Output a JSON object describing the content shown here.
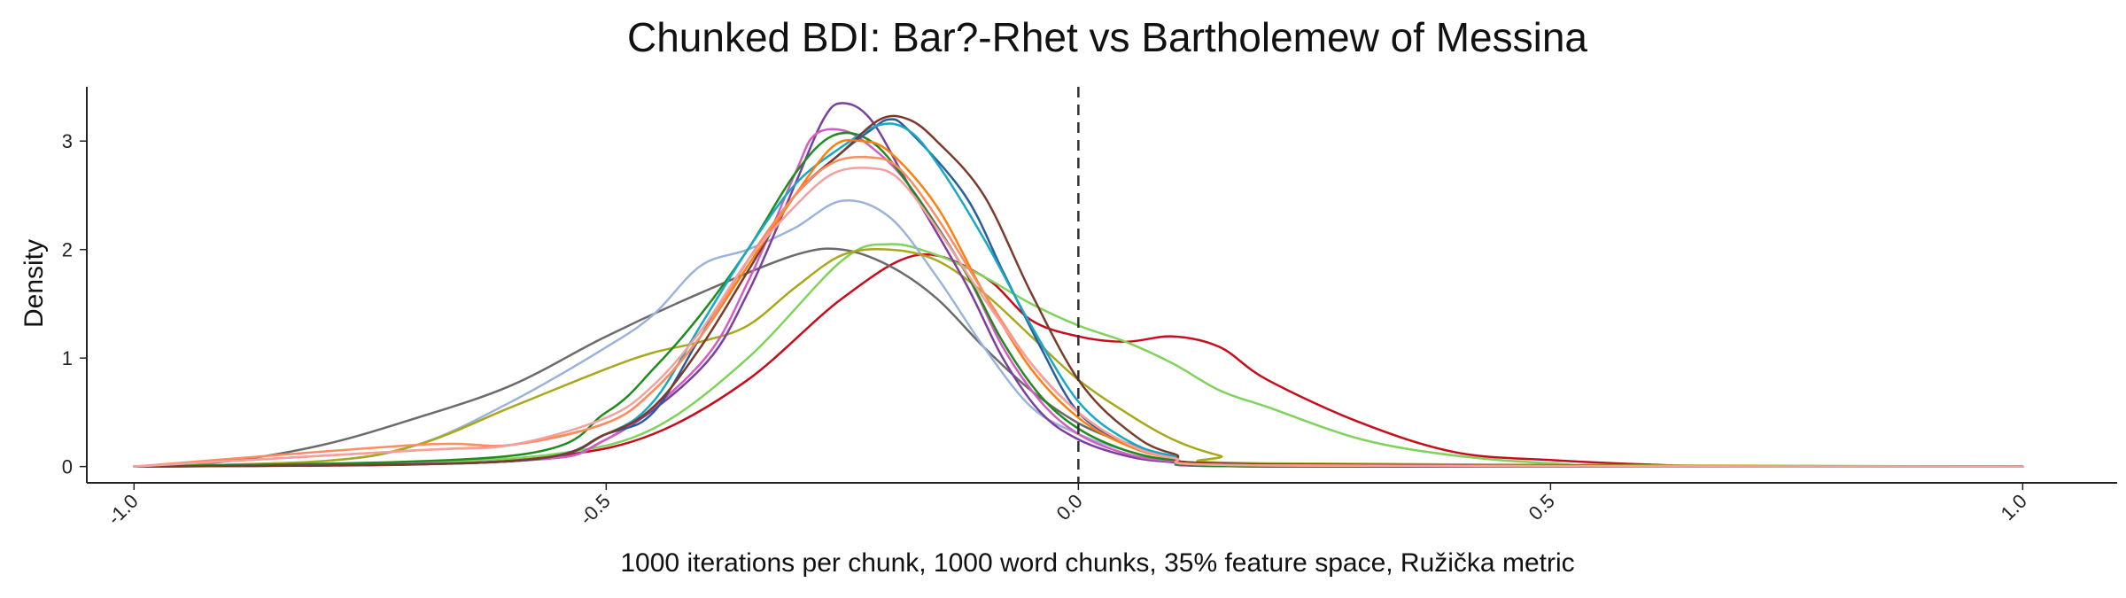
{
  "chart_data": {
    "type": "line",
    "title": "Chunked BDI: Bar?-Rhet vs Bartholemew of Messina",
    "xlabel": "1000 iterations per chunk, 1000 word chunks, 35% feature space, Ružička metric",
    "ylabel": "Density",
    "xlim": [
      -1.05,
      1.1
    ],
    "ylim": [
      -0.15,
      3.5
    ],
    "xticks": [
      -1.0,
      -0.5,
      0.0,
      0.5,
      1.0
    ],
    "xtick_labels": [
      "-1.0",
      "-0.5",
      "0.0",
      "0.5",
      "1.0"
    ],
    "yticks": [
      0,
      1,
      2,
      3
    ],
    "ytick_labels": [
      "0",
      "1",
      "2",
      "3"
    ],
    "reference_line_x": 0.0,
    "grid": false,
    "legend": "none",
    "series": [
      {
        "color": "#c80c1c",
        "x": [
          -1.0,
          -0.7,
          -0.55,
          -0.45,
          -0.35,
          -0.25,
          -0.17,
          -0.1,
          -0.05,
          0.0,
          0.05,
          0.1,
          0.15,
          0.2,
          0.3,
          0.4,
          0.5,
          0.6,
          0.7,
          1.0
        ],
        "y": [
          0.0,
          0.02,
          0.1,
          0.3,
          0.8,
          1.55,
          1.95,
          1.75,
          1.35,
          1.2,
          1.15,
          1.2,
          1.1,
          0.8,
          0.4,
          0.13,
          0.06,
          0.02,
          0.0,
          0.0
        ]
      },
      {
        "color": "#7fd35a",
        "x": [
          -1.0,
          -0.7,
          -0.55,
          -0.45,
          -0.35,
          -0.25,
          -0.2,
          -0.15,
          -0.1,
          -0.05,
          0.0,
          0.05,
          0.1,
          0.15,
          0.2,
          0.3,
          0.4,
          0.5,
          0.6,
          1.0
        ],
        "y": [
          0.0,
          0.04,
          0.12,
          0.35,
          1.0,
          1.9,
          2.05,
          1.95,
          1.75,
          1.5,
          1.3,
          1.15,
          0.95,
          0.7,
          0.55,
          0.25,
          0.1,
          0.03,
          0.0,
          0.0
        ]
      },
      {
        "color": "#6b6b6b",
        "x": [
          -1.0,
          -0.9,
          -0.8,
          -0.7,
          -0.6,
          -0.5,
          -0.4,
          -0.3,
          -0.25,
          -0.2,
          -0.15,
          -0.1,
          -0.05,
          0.0,
          0.05,
          0.1,
          0.2,
          1.0
        ],
        "y": [
          0.0,
          0.05,
          0.2,
          0.45,
          0.75,
          1.2,
          1.6,
          1.95,
          2.0,
          1.85,
          1.55,
          1.1,
          0.7,
          0.4,
          0.22,
          0.1,
          0.02,
          0.0
        ]
      },
      {
        "color": "#9ab3dd",
        "x": [
          -1.0,
          -0.8,
          -0.7,
          -0.6,
          -0.5,
          -0.45,
          -0.4,
          -0.35,
          -0.3,
          -0.25,
          -0.2,
          -0.15,
          -0.1,
          -0.05,
          0.0,
          0.05,
          0.1,
          0.2,
          1.0
        ],
        "y": [
          0.0,
          0.05,
          0.2,
          0.6,
          1.1,
          1.4,
          1.85,
          2.0,
          2.2,
          2.45,
          2.3,
          1.75,
          1.1,
          0.55,
          0.3,
          0.15,
          0.06,
          0.01,
          0.0
        ]
      },
      {
        "color": "#a8a81c",
        "x": [
          -1.0,
          -0.8,
          -0.7,
          -0.6,
          -0.5,
          -0.45,
          -0.4,
          -0.35,
          -0.3,
          -0.25,
          -0.2,
          -0.15,
          -0.1,
          -0.05,
          0.0,
          0.05,
          0.1,
          0.15,
          0.2,
          1.0
        ],
        "y": [
          0.0,
          0.05,
          0.2,
          0.55,
          0.9,
          1.05,
          1.15,
          1.3,
          1.65,
          1.95,
          2.0,
          1.9,
          1.6,
          1.2,
          0.8,
          0.5,
          0.25,
          0.1,
          0.03,
          0.0
        ]
      },
      {
        "color": "#7b3fa0",
        "x": [
          -1.0,
          -0.6,
          -0.5,
          -0.4,
          -0.35,
          -0.3,
          -0.27,
          -0.25,
          -0.22,
          -0.18,
          -0.12,
          -0.08,
          -0.04,
          0.0,
          0.05,
          0.1,
          0.2,
          1.0
        ],
        "y": [
          0.0,
          0.05,
          0.25,
          0.9,
          1.6,
          2.6,
          3.2,
          3.35,
          3.2,
          2.6,
          1.7,
          1.0,
          0.5,
          0.25,
          0.1,
          0.04,
          0.0,
          0.0
        ]
      },
      {
        "color": "#d65bc3",
        "x": [
          -1.0,
          -0.6,
          -0.5,
          -0.4,
          -0.35,
          -0.3,
          -0.28,
          -0.25,
          -0.22,
          -0.18,
          -0.12,
          -0.08,
          -0.04,
          0.0,
          0.05,
          0.1,
          0.2,
          1.0
        ],
        "y": [
          0.0,
          0.05,
          0.25,
          0.95,
          1.7,
          2.7,
          3.05,
          3.1,
          2.95,
          2.6,
          1.8,
          1.1,
          0.6,
          0.3,
          0.12,
          0.05,
          0.0,
          0.0
        ]
      },
      {
        "color": "#1e8c1e",
        "x": [
          -1.0,
          -0.6,
          -0.5,
          -0.45,
          -0.4,
          -0.35,
          -0.3,
          -0.26,
          -0.22,
          -0.18,
          -0.12,
          -0.08,
          -0.04,
          0.0,
          0.05,
          0.1,
          0.2,
          1.0
        ],
        "y": [
          0.0,
          0.1,
          0.5,
          0.9,
          1.4,
          2.0,
          2.7,
          3.05,
          3.0,
          2.6,
          1.8,
          1.15,
          0.65,
          0.35,
          0.15,
          0.06,
          0.0,
          0.0
        ]
      },
      {
        "color": "#2a5d9f",
        "x": [
          -1.0,
          -0.6,
          -0.5,
          -0.45,
          -0.4,
          -0.35,
          -0.3,
          -0.25,
          -0.22,
          -0.2,
          -0.18,
          -0.12,
          -0.08,
          -0.04,
          0.0,
          0.05,
          0.1,
          0.2,
          1.0
        ],
        "y": [
          0.0,
          0.05,
          0.3,
          0.5,
          1.2,
          1.9,
          2.5,
          2.9,
          3.1,
          3.2,
          3.1,
          2.5,
          1.8,
          1.1,
          0.5,
          0.22,
          0.08,
          0.01,
          0.0
        ]
      },
      {
        "color": "#17a8c4",
        "x": [
          -1.0,
          -0.6,
          -0.5,
          -0.45,
          -0.4,
          -0.35,
          -0.3,
          -0.25,
          -0.21,
          -0.18,
          -0.15,
          -0.1,
          -0.05,
          0.0,
          0.05,
          0.1,
          0.2,
          1.0
        ],
        "y": [
          0.0,
          0.05,
          0.3,
          0.6,
          1.3,
          2.0,
          2.6,
          2.95,
          3.15,
          3.1,
          2.8,
          2.1,
          1.3,
          0.6,
          0.25,
          0.1,
          0.01,
          0.0
        ]
      },
      {
        "color": "#7a3b2a",
        "x": [
          -1.0,
          -0.6,
          -0.5,
          -0.45,
          -0.4,
          -0.35,
          -0.3,
          -0.25,
          -0.21,
          -0.18,
          -0.15,
          -0.1,
          -0.05,
          0.0,
          0.05,
          0.1,
          0.2,
          1.0
        ],
        "y": [
          0.0,
          0.05,
          0.3,
          0.55,
          1.1,
          1.8,
          2.5,
          2.9,
          3.2,
          3.2,
          3.0,
          2.5,
          1.6,
          0.8,
          0.35,
          0.12,
          0.02,
          0.0
        ]
      },
      {
        "color": "#ff7f0e",
        "x": [
          -1.0,
          -0.7,
          -0.6,
          -0.5,
          -0.45,
          -0.4,
          -0.35,
          -0.3,
          -0.26,
          -0.23,
          -0.2,
          -0.15,
          -0.1,
          -0.05,
          0.0,
          0.05,
          0.1,
          0.2,
          1.0
        ],
        "y": [
          0.0,
          0.15,
          0.2,
          0.4,
          0.7,
          1.2,
          1.85,
          2.5,
          2.95,
          3.0,
          2.9,
          2.4,
          1.6,
          0.9,
          0.45,
          0.2,
          0.08,
          0.01,
          0.0
        ]
      },
      {
        "color": "#fc8d62",
        "x": [
          -1.0,
          -0.7,
          -0.6,
          -0.5,
          -0.45,
          -0.4,
          -0.35,
          -0.3,
          -0.26,
          -0.22,
          -0.19,
          -0.15,
          -0.1,
          -0.05,
          0.0,
          0.05,
          0.1,
          0.2,
          1.0
        ],
        "y": [
          0.0,
          0.2,
          0.2,
          0.4,
          0.7,
          1.2,
          1.9,
          2.5,
          2.8,
          2.85,
          2.75,
          2.3,
          1.6,
          0.95,
          0.5,
          0.22,
          0.08,
          0.01,
          0.0
        ]
      },
      {
        "color": "#f5a0a0",
        "x": [
          -1.0,
          -0.7,
          -0.6,
          -0.5,
          -0.45,
          -0.4,
          -0.35,
          -0.3,
          -0.26,
          -0.22,
          -0.19,
          -0.15,
          -0.1,
          -0.05,
          0.0,
          0.05,
          0.1,
          0.2,
          1.0
        ],
        "y": [
          0.0,
          0.15,
          0.2,
          0.45,
          0.75,
          1.25,
          1.9,
          2.4,
          2.7,
          2.75,
          2.65,
          2.2,
          1.55,
          0.95,
          0.5,
          0.22,
          0.08,
          0.01,
          0.0
        ]
      }
    ]
  }
}
